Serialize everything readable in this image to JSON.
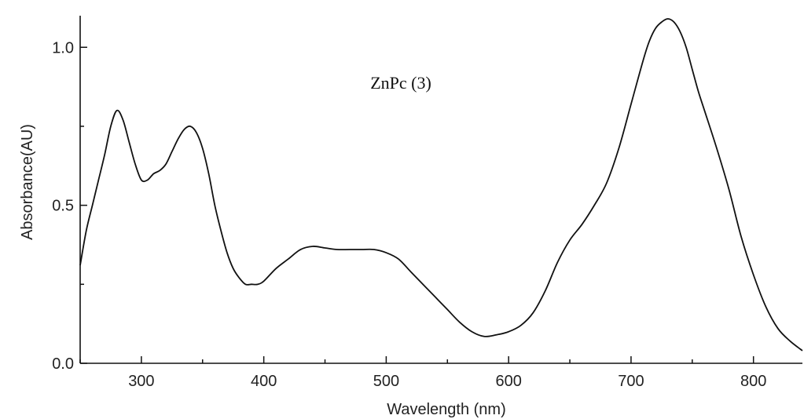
{
  "chart_data": {
    "type": "line",
    "xlabel": "Wavelength (nm)",
    "ylabel": "Absorbance(AU)",
    "annotation": "ZnPc (3)",
    "xlim": [
      250,
      840
    ],
    "ylim": [
      0.0,
      1.1
    ],
    "x_ticks": [
      300,
      400,
      500,
      600,
      700,
      800
    ],
    "x_tick_labels": [
      "300",
      "400",
      "500",
      "600",
      "700",
      "800"
    ],
    "x_minor_step": 50,
    "y_ticks": [
      0.0,
      0.5,
      1.0
    ],
    "y_tick_labels": [
      "0.0",
      "0.5",
      "1.0"
    ],
    "y_minor_step": 0.25,
    "grid": false,
    "series": [
      {
        "color": "#111111",
        "x": [
          250,
          255,
          260,
          265,
          270,
          275,
          280,
          285,
          290,
          295,
          300,
          305,
          310,
          315,
          320,
          325,
          330,
          335,
          340,
          345,
          350,
          355,
          360,
          365,
          370,
          375,
          380,
          385,
          390,
          395,
          400,
          410,
          420,
          430,
          440,
          450,
          460,
          470,
          480,
          490,
          500,
          510,
          520,
          530,
          540,
          550,
          560,
          570,
          580,
          590,
          600,
          610,
          620,
          630,
          640,
          650,
          660,
          670,
          680,
          690,
          700,
          710,
          715,
          720,
          725,
          730,
          735,
          740,
          745,
          750,
          755,
          760,
          770,
          780,
          790,
          800,
          810,
          820,
          830,
          840
        ],
        "y": [
          0.31,
          0.42,
          0.5,
          0.58,
          0.66,
          0.75,
          0.8,
          0.77,
          0.7,
          0.63,
          0.58,
          0.58,
          0.6,
          0.61,
          0.63,
          0.67,
          0.71,
          0.74,
          0.75,
          0.73,
          0.68,
          0.6,
          0.5,
          0.42,
          0.35,
          0.3,
          0.27,
          0.25,
          0.25,
          0.25,
          0.26,
          0.3,
          0.33,
          0.36,
          0.37,
          0.365,
          0.36,
          0.36,
          0.36,
          0.36,
          0.35,
          0.33,
          0.29,
          0.25,
          0.21,
          0.17,
          0.13,
          0.1,
          0.085,
          0.09,
          0.1,
          0.12,
          0.16,
          0.23,
          0.32,
          0.39,
          0.44,
          0.5,
          0.57,
          0.68,
          0.82,
          0.96,
          1.02,
          1.06,
          1.08,
          1.09,
          1.08,
          1.05,
          1.0,
          0.93,
          0.86,
          0.8,
          0.68,
          0.55,
          0.4,
          0.28,
          0.18,
          0.11,
          0.07,
          0.04
        ]
      }
    ]
  }
}
